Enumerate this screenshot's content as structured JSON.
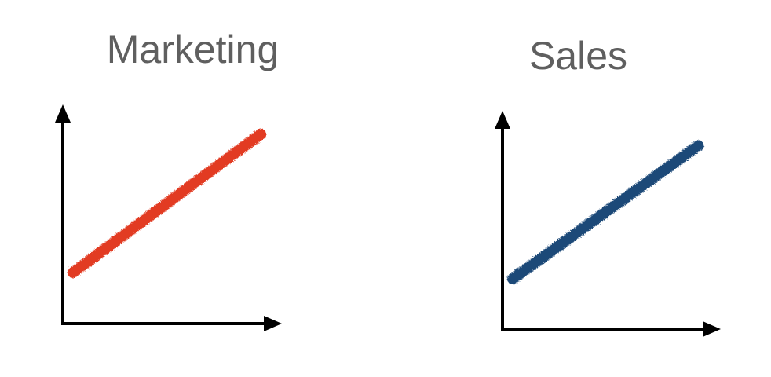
{
  "chart_data": [
    {
      "type": "line",
      "title": "Marketing",
      "xlabel": "",
      "ylabel": "",
      "color": "#e23b24",
      "x": [
        0,
        1
      ],
      "values": [
        0.22,
        0.98
      ],
      "xlim": [
        0,
        1
      ],
      "ylim": [
        0,
        1
      ],
      "axes_ticks": false,
      "grid": false
    },
    {
      "type": "line",
      "title": "Sales",
      "xlabel": "",
      "ylabel": "",
      "color": "#1e4a78",
      "x": [
        0,
        1
      ],
      "values": [
        0.22,
        0.96
      ],
      "xlim": [
        0,
        1
      ],
      "ylim": [
        0,
        1
      ],
      "axes_ticks": false,
      "grid": false
    }
  ]
}
